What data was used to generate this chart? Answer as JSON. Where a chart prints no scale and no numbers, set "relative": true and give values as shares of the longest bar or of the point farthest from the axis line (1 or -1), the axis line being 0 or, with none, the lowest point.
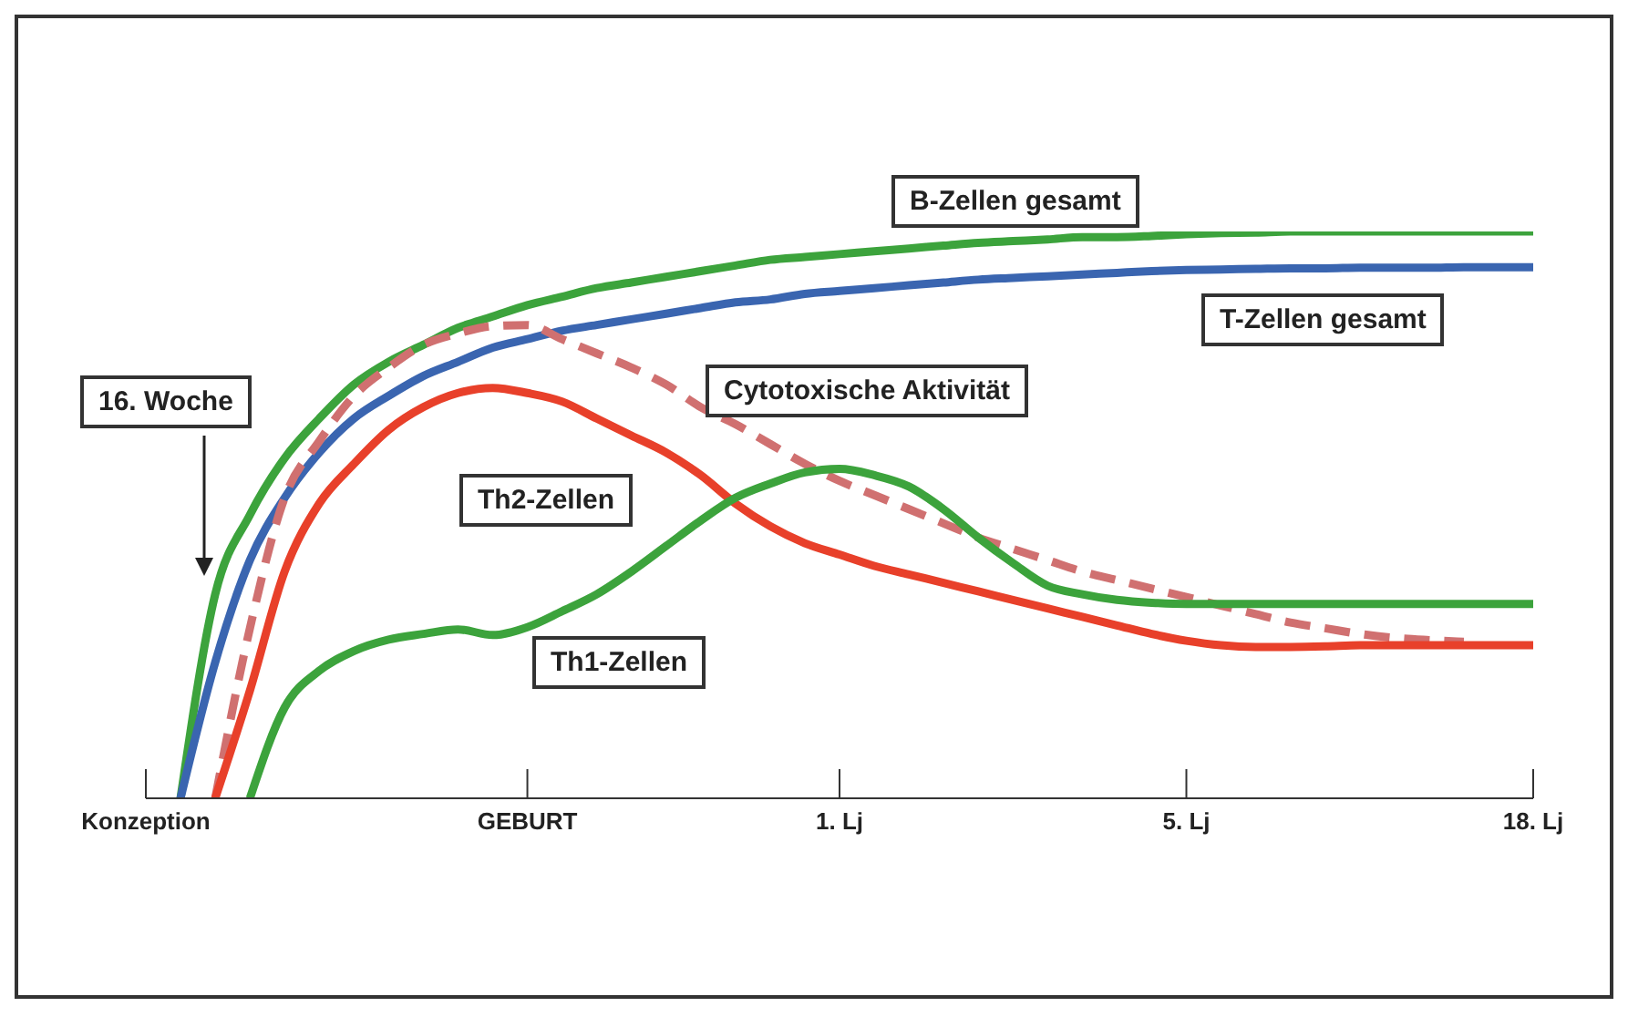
{
  "chart_data": {
    "type": "line",
    "relative": true,
    "marker": "none",
    "legend": false,
    "grid": false,
    "categories": [
      "Konzeption",
      null,
      null,
      null,
      null,
      null,
      null,
      null,
      null,
      null,
      null,
      "GEBURT",
      null,
      null,
      null,
      null,
      null,
      null,
      null,
      null,
      "1. Lj",
      null,
      null,
      null,
      null,
      null,
      null,
      null,
      null,
      null,
      "5. Lj",
      null,
      null,
      null,
      null,
      null,
      null,
      null,
      null,
      null,
      "18. Lj"
    ],
    "annotations": [
      "16. Woche"
    ],
    "series": [
      {
        "name": "B-Zellen gesamt",
        "color": "#3ca33c",
        "values": [
          null,
          0,
          0.36,
          0.5,
          0.6,
          0.67,
          0.73,
          0.77,
          0.8,
          0.83,
          0.85,
          0.87,
          0.885,
          0.9,
          0.91,
          0.92,
          0.93,
          0.94,
          0.95,
          0.955,
          0.96,
          0.965,
          0.97,
          0.975,
          0.98,
          0.983,
          0.986,
          0.99,
          0.99,
          0.992,
          0.995,
          0.997,
          0.998,
          1,
          1,
          1,
          1,
          1,
          1,
          1,
          1
        ]
      },
      {
        "name": "T-Zellen gesamt",
        "color": "#3a65b0",
        "values": [
          null,
          0,
          0.24,
          0.42,
          0.53,
          0.61,
          0.67,
          0.71,
          0.745,
          0.77,
          0.795,
          0.81,
          0.825,
          0.835,
          0.845,
          0.855,
          0.865,
          0.875,
          0.88,
          0.89,
          0.895,
          0.9,
          0.905,
          0.91,
          0.915,
          0.918,
          0.921,
          0.924,
          0.927,
          0.93,
          0.932,
          0.933,
          0.934,
          0.935,
          0.935,
          0.936,
          0.936,
          0.936,
          0.937,
          0.937,
          0.937
        ]
      },
      {
        "name": "Cytotoxische Aktivität",
        "color": "#d07070",
        "line_style": "dashed",
        "values": [
          null,
          null,
          0,
          0.3,
          0.53,
          0.63,
          0.71,
          0.76,
          0.8,
          0.82,
          0.833,
          0.835,
          0.81,
          0.785,
          0.76,
          0.73,
          0.69,
          0.66,
          0.625,
          0.59,
          0.56,
          0.535,
          0.51,
          0.485,
          0.46,
          0.44,
          0.42,
          0.4,
          0.385,
          0.37,
          0.355,
          0.34,
          0.325,
          0.31,
          0.3,
          0.29,
          0.283,
          0.279,
          0.276,
          null,
          null
        ]
      },
      {
        "name": "Th2-Zellen",
        "color": "#e8402a",
        "values": [
          null,
          null,
          0,
          0.19,
          0.4,
          0.52,
          0.59,
          0.65,
          0.69,
          0.715,
          0.724,
          0.715,
          0.7,
          0.67,
          0.64,
          0.61,
          0.57,
          0.52,
          0.48,
          0.45,
          0.43,
          0.41,
          0.395,
          0.38,
          0.365,
          0.35,
          0.335,
          0.32,
          0.305,
          0.29,
          0.278,
          0.27,
          0.267,
          0.267,
          0.268,
          0.27,
          0.27,
          0.27,
          0.27,
          0.27,
          0.27
        ]
      },
      {
        "name": "Th1-Zellen",
        "color": "#3ca33c",
        "values": [
          null,
          null,
          null,
          0,
          0.16,
          0.225,
          0.26,
          0.28,
          0.29,
          0.298,
          0.288,
          0.302,
          0.33,
          0.36,
          0.4,
          0.445,
          0.49,
          0.53,
          0.555,
          0.575,
          0.581,
          0.57,
          0.55,
          0.51,
          0.46,
          0.415,
          0.375,
          0.36,
          0.35,
          0.345,
          0.343,
          0.343,
          0.343,
          0.343,
          0.343,
          0.343,
          0.343,
          0.343,
          0.343,
          0.343,
          0.343
        ]
      }
    ]
  }
}
